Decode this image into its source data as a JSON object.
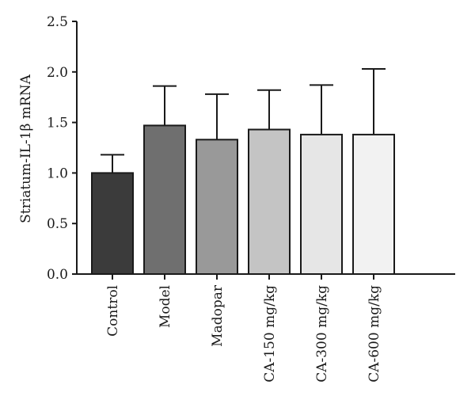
{
  "chart_data": {
    "type": "bar",
    "title": "",
    "xlabel": "",
    "ylabel": "Striatum-IL-1β mRNA",
    "ylim": [
      0,
      2.5
    ],
    "yticks": [
      "0.0",
      "0.5",
      "1.0",
      "1.5",
      "2.0",
      "2.5"
    ],
    "grid": false,
    "error_bars": "upper",
    "categories": [
      "Control",
      "Model",
      "Madopar",
      "CA-150 mg/kg",
      "CA-300 mg/kg",
      "CA-600 mg/kg"
    ],
    "values": [
      1.0,
      1.47,
      1.33,
      1.43,
      1.38,
      1.38
    ],
    "errors": [
      0.18,
      0.39,
      0.45,
      0.39,
      0.49,
      0.65
    ],
    "colors": [
      "#3b3b3b",
      "#6f6f6f",
      "#999999",
      "#c4c4c4",
      "#e6e6e6",
      "#f2f2f2"
    ]
  }
}
